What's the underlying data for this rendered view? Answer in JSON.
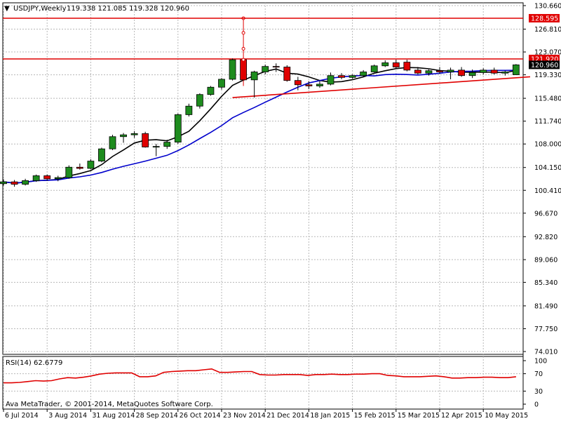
{
  "header": {
    "symbol_title": "USDJPY,Weekly",
    "ohlc": "119.338 121.085 119.328 120.960"
  },
  "copyright": "Ava MetaTrader, © 2001-2014, MetaQuotes Software Corp.",
  "rsi": {
    "title": "RSI(14) 62.6779",
    "levels": [
      100,
      70,
      30,
      0
    ],
    "values": [
      49,
      49,
      50,
      52,
      54,
      53,
      54,
      58,
      61,
      60,
      62,
      65,
      69,
      71,
      72,
      72,
      72,
      63,
      63,
      65,
      73,
      75,
      76,
      77,
      77,
      79,
      81,
      73,
      73,
      74,
      75,
      75,
      68,
      67,
      67,
      68,
      68,
      68,
      66,
      68,
      68,
      69,
      68,
      68,
      69,
      69,
      70,
      70,
      66,
      65,
      63,
      63,
      63,
      64,
      65,
      63,
      60,
      60,
      61,
      61,
      62,
      62,
      61,
      61,
      63
    ]
  },
  "colors": {
    "bull": "#1e8c1e",
    "bear": "#e00000",
    "ma_fast": "#000000",
    "ma_slow": "#0000cc",
    "trend": "#e00000",
    "rsi": "#e00000",
    "hline": "#e00000",
    "current_tag": "#000000"
  },
  "chart_data": {
    "type": "candlestick",
    "title": "USDJPY,Weekly",
    "y_ticks": [
      "130.660",
      "126.810",
      "123.070",
      "119.330",
      "115.480",
      "111.740",
      "108.000",
      "104.150",
      "100.410",
      "96.670",
      "92.820",
      "89.060",
      "85.340",
      "81.490",
      "77.750",
      "74.010"
    ],
    "ylim": [
      74.01,
      130.66
    ],
    "x_labels": [
      "6 Jul 2014",
      "3 Aug 2014",
      "31 Aug 2014",
      "28 Sep 2014",
      "26 Oct 2014",
      "23 Nov 2014",
      "21 Dec 2014",
      "18 Jan 2015",
      "15 Feb 2015",
      "15 Mar 2015",
      "12 Apr 2015",
      "10 May 2015"
    ],
    "horizontal_lines": [
      {
        "label": "128.595",
        "value": 128.595
      },
      {
        "label": "121.920",
        "value": 121.92
      },
      {
        "label": "120.960",
        "value": 120.96
      }
    ],
    "candles": [
      {
        "o": 101.5,
        "h": 102.2,
        "l": 101.2,
        "c": 101.8
      },
      {
        "o": 101.8,
        "h": 102.1,
        "l": 101.0,
        "c": 101.4
      },
      {
        "o": 101.4,
        "h": 102.3,
        "l": 101.2,
        "c": 102.0
      },
      {
        "o": 102.0,
        "h": 103.0,
        "l": 101.8,
        "c": 102.8
      },
      {
        "o": 102.8,
        "h": 103.0,
        "l": 102.0,
        "c": 102.3
      },
      {
        "o": 102.3,
        "h": 102.8,
        "l": 101.9,
        "c": 102.5
      },
      {
        "o": 102.5,
        "h": 104.5,
        "l": 102.3,
        "c": 104.2
      },
      {
        "o": 104.2,
        "h": 104.8,
        "l": 103.8,
        "c": 104.0
      },
      {
        "o": 104.0,
        "h": 105.5,
        "l": 103.9,
        "c": 105.2
      },
      {
        "o": 105.2,
        "h": 107.4,
        "l": 105.0,
        "c": 107.2
      },
      {
        "o": 107.2,
        "h": 109.5,
        "l": 107.0,
        "c": 109.2
      },
      {
        "o": 109.2,
        "h": 109.8,
        "l": 108.2,
        "c": 109.5
      },
      {
        "o": 109.5,
        "h": 110.1,
        "l": 109.0,
        "c": 109.7
      },
      {
        "o": 109.7,
        "h": 110.0,
        "l": 107.4,
        "c": 107.5
      },
      {
        "o": 107.5,
        "h": 108.0,
        "l": 106.0,
        "c": 107.6
      },
      {
        "o": 107.6,
        "h": 108.7,
        "l": 107.2,
        "c": 108.3
      },
      {
        "o": 108.3,
        "h": 113.0,
        "l": 108.0,
        "c": 112.8
      },
      {
        "o": 112.8,
        "h": 114.6,
        "l": 112.5,
        "c": 114.2
      },
      {
        "o": 114.2,
        "h": 116.3,
        "l": 113.8,
        "c": 116.1
      },
      {
        "o": 116.1,
        "h": 117.5,
        "l": 115.9,
        "c": 117.3
      },
      {
        "o": 117.3,
        "h": 118.8,
        "l": 116.9,
        "c": 118.6
      },
      {
        "o": 118.6,
        "h": 122.0,
        "l": 118.4,
        "c": 121.8
      },
      {
        "o": 121.8,
        "h": 128.595,
        "l": 117.5,
        "c": 118.5
      },
      {
        "o": 118.5,
        "h": 120.0,
        "l": 115.6,
        "c": 119.8
      },
      {
        "o": 119.8,
        "h": 121.0,
        "l": 119.4,
        "c": 120.7
      },
      {
        "o": 120.7,
        "h": 121.2,
        "l": 119.8,
        "c": 120.6
      },
      {
        "o": 120.6,
        "h": 120.9,
        "l": 118.2,
        "c": 118.4
      },
      {
        "o": 118.4,
        "h": 119.0,
        "l": 116.8,
        "c": 117.7
      },
      {
        "o": 117.7,
        "h": 118.3,
        "l": 117.0,
        "c": 117.5
      },
      {
        "o": 117.5,
        "h": 118.4,
        "l": 117.2,
        "c": 117.8
      },
      {
        "o": 117.8,
        "h": 119.7,
        "l": 117.6,
        "c": 119.2
      },
      {
        "o": 119.2,
        "h": 119.6,
        "l": 118.6,
        "c": 118.9
      },
      {
        "o": 118.9,
        "h": 119.4,
        "l": 118.7,
        "c": 119.2
      },
      {
        "o": 119.2,
        "h": 120.1,
        "l": 119.0,
        "c": 119.8
      },
      {
        "o": 119.8,
        "h": 121.0,
        "l": 119.7,
        "c": 120.8
      },
      {
        "o": 120.8,
        "h": 121.7,
        "l": 120.6,
        "c": 121.3
      },
      {
        "o": 121.3,
        "h": 121.8,
        "l": 120.4,
        "c": 120.6
      },
      {
        "o": 121.4,
        "h": 121.8,
        "l": 119.9,
        "c": 120.1
      },
      {
        "o": 120.1,
        "h": 120.6,
        "l": 119.4,
        "c": 119.6
      },
      {
        "o": 119.6,
        "h": 120.2,
        "l": 119.2,
        "c": 120.0
      },
      {
        "o": 120.0,
        "h": 120.6,
        "l": 119.5,
        "c": 119.8
      },
      {
        "o": 119.8,
        "h": 120.5,
        "l": 118.6,
        "c": 120.1
      },
      {
        "o": 120.1,
        "h": 120.6,
        "l": 119.0,
        "c": 119.2
      },
      {
        "o": 119.2,
        "h": 120.2,
        "l": 118.8,
        "c": 119.7
      },
      {
        "o": 119.7,
        "h": 120.4,
        "l": 119.4,
        "c": 120.1
      },
      {
        "o": 120.1,
        "h": 120.5,
        "l": 119.4,
        "c": 119.6
      },
      {
        "o": 119.6,
        "h": 120.0,
        "l": 119.2,
        "c": 119.8
      },
      {
        "o": 119.338,
        "h": 121.085,
        "l": 119.328,
        "c": 120.96
      }
    ]
  }
}
